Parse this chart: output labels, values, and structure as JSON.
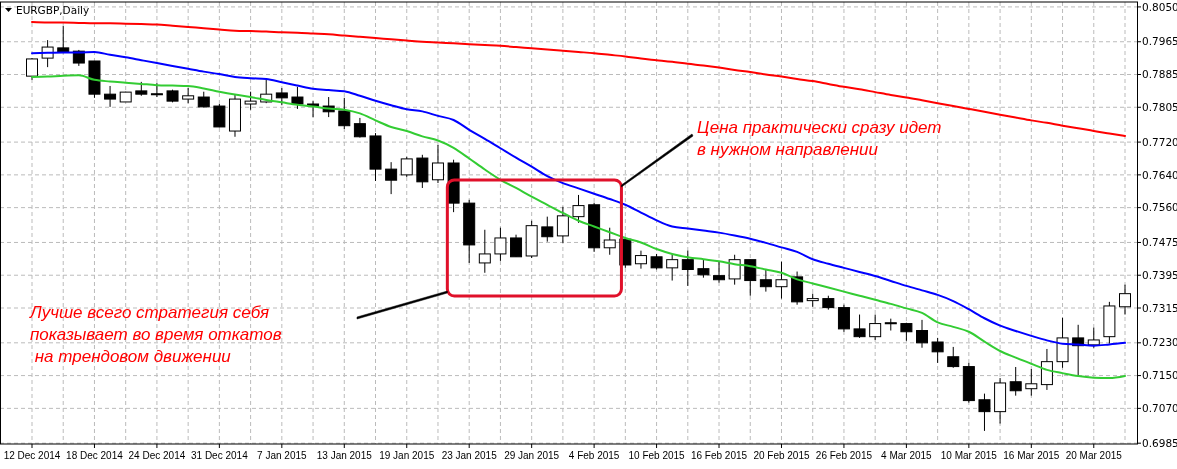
{
  "chart_data": {
    "type": "candlestick",
    "title": "EURGBP,Daily",
    "categories": [
      "12 Dec 2014",
      null,
      null,
      null,
      "18 Dec 2014",
      null,
      null,
      null,
      "24 Dec 2014",
      null,
      null,
      null,
      "31 Dec 2014",
      null,
      null,
      null,
      "7 Jan 2015",
      null,
      null,
      null,
      "13 Jan 2015",
      null,
      null,
      null,
      "19 Jan 2015",
      null,
      null,
      null,
      "23 Jan 2015",
      null,
      null,
      null,
      "29 Jan 2015",
      null,
      null,
      null,
      "4 Feb 2015",
      null,
      null,
      null,
      "10 Feb 2015",
      null,
      null,
      null,
      "16 Feb 2015",
      null,
      null,
      null,
      "20 Feb 2015",
      null,
      null,
      null,
      "26 Feb 2015",
      null,
      null,
      null,
      "4 Mar 2015",
      null,
      null,
      null,
      "10 Mar 2015",
      null,
      null,
      null,
      "16 Mar 2015",
      null,
      null,
      null,
      "20 Mar 2015",
      null,
      null
    ],
    "ohlc": [
      [
        0.7881,
        0.7925,
        0.7872,
        0.7923
      ],
      [
        0.7925,
        0.7969,
        0.7903,
        0.7952
      ],
      [
        0.795,
        0.8003,
        0.7937,
        0.794
      ],
      [
        0.7942,
        0.7945,
        0.7906,
        0.7913
      ],
      [
        0.7918,
        0.7918,
        0.7828,
        0.7837
      ],
      [
        0.7837,
        0.7857,
        0.7806,
        0.7825
      ],
      [
        0.7818,
        0.7843,
        0.7818,
        0.7842
      ],
      [
        0.7845,
        0.7867,
        0.7833,
        0.7837
      ],
      [
        0.7838,
        0.7864,
        0.783,
        0.7836
      ],
      [
        0.7845,
        0.7848,
        0.7817,
        0.782
      ],
      [
        0.7825,
        0.7852,
        0.7815,
        0.7833
      ],
      [
        0.783,
        0.7843,
        0.7805,
        0.7806
      ],
      [
        0.7808,
        0.7813,
        0.7756,
        0.7757
      ],
      [
        0.7747,
        0.7835,
        0.7733,
        0.7825
      ],
      [
        0.7813,
        0.7843,
        0.7799,
        0.782
      ],
      [
        0.7818,
        0.7872,
        0.7815,
        0.7837
      ],
      [
        0.784,
        0.7852,
        0.781,
        0.7828
      ],
      [
        0.783,
        0.7855,
        0.7801,
        0.7813
      ],
      [
        0.7813,
        0.782,
        0.7781,
        0.7808
      ],
      [
        0.7808,
        0.783,
        0.7781,
        0.7794
      ],
      [
        0.7796,
        0.7828,
        0.7752,
        0.776
      ],
      [
        0.7765,
        0.7779,
        0.7731,
        0.7733
      ],
      [
        0.7735,
        0.7742,
        0.7625,
        0.7654
      ],
      [
        0.7654,
        0.7671,
        0.7593,
        0.7627
      ],
      [
        0.764,
        0.7684,
        0.7635,
        0.7679
      ],
      [
        0.7681,
        0.7689,
        0.7608,
        0.7623
      ],
      [
        0.7628,
        0.7713,
        0.762,
        0.7669
      ],
      [
        0.7669,
        0.7677,
        0.7549,
        0.7571
      ],
      [
        0.7571,
        0.7579,
        0.7425,
        0.7469
      ],
      [
        0.7425,
        0.7506,
        0.7401,
        0.7447
      ],
      [
        0.7447,
        0.7511,
        0.743,
        0.7486
      ],
      [
        0.7486,
        0.7494,
        0.744,
        0.744
      ],
      [
        0.7442,
        0.7528,
        0.7437,
        0.7516
      ],
      [
        0.7513,
        0.7538,
        0.7477,
        0.7489
      ],
      [
        0.7491,
        0.7562,
        0.7474,
        0.754
      ],
      [
        0.7538,
        0.7591,
        0.7523,
        0.7565
      ],
      [
        0.7567,
        0.7572,
        0.7452,
        0.7462
      ],
      [
        0.7462,
        0.7511,
        0.7445,
        0.7481
      ],
      [
        0.7483,
        0.7486,
        0.7413,
        0.742
      ],
      [
        0.7423,
        0.7455,
        0.7411,
        0.7443
      ],
      [
        0.744,
        0.7447,
        0.7409,
        0.7413
      ],
      [
        0.7413,
        0.7445,
        0.7382,
        0.7433
      ],
      [
        0.7433,
        0.7455,
        0.7369,
        0.7409
      ],
      [
        0.7411,
        0.7433,
        0.7389,
        0.7396
      ],
      [
        0.7394,
        0.7428,
        0.7377,
        0.7384
      ],
      [
        0.7386,
        0.7445,
        0.7372,
        0.7433
      ],
      [
        0.7433,
        0.7433,
        0.7345,
        0.7382
      ],
      [
        0.7384,
        0.7408,
        0.7355,
        0.7367
      ],
      [
        0.7367,
        0.7428,
        0.7338,
        0.7384
      ],
      [
        0.7391,
        0.7404,
        0.7323,
        0.733
      ],
      [
        0.7333,
        0.735,
        0.7318,
        0.7338
      ],
      [
        0.7338,
        0.7345,
        0.7311,
        0.7316
      ],
      [
        0.7316,
        0.7323,
        0.7257,
        0.7264
      ],
      [
        0.7264,
        0.7299,
        0.7242,
        0.7245
      ],
      [
        0.7245,
        0.7299,
        0.7237,
        0.7277
      ],
      [
        0.7279,
        0.7289,
        0.726,
        0.7277
      ],
      [
        0.7277,
        0.7279,
        0.7235,
        0.7257
      ],
      [
        0.726,
        0.7286,
        0.7218,
        0.723
      ],
      [
        0.7232,
        0.7242,
        0.7181,
        0.7208
      ],
      [
        0.7196,
        0.722,
        0.7169,
        0.7172
      ],
      [
        0.7172,
        0.7181,
        0.7084,
        0.7089
      ],
      [
        0.7091,
        0.7106,
        0.7015,
        0.7062
      ],
      [
        0.7062,
        0.7144,
        0.7033,
        0.7132
      ],
      [
        0.7135,
        0.7171,
        0.7101,
        0.7113
      ],
      [
        0.7118,
        0.7166,
        0.7101,
        0.713
      ],
      [
        0.7128,
        0.7215,
        0.7115,
        0.7184
      ],
      [
        0.7184,
        0.7291,
        0.7169,
        0.7242
      ],
      [
        0.7242,
        0.7274,
        0.7149,
        0.7223
      ],
      [
        0.7225,
        0.7267,
        0.7218,
        0.7237
      ],
      [
        0.7245,
        0.733,
        0.7228,
        0.732
      ],
      [
        0.7318,
        0.7372,
        0.7299,
        0.735
      ]
    ],
    "series": [
      {
        "type": "line",
        "color": "#ff0000",
        "values": [
          0.8013,
          0.8012,
          0.8012,
          0.8011,
          0.801,
          0.801,
          0.8009,
          0.8008,
          0.8007,
          0.8004,
          0.8001,
          0.7998,
          0.7995,
          0.7992,
          0.7991,
          0.799,
          0.7988,
          0.7987,
          0.7985,
          0.7983,
          0.798,
          0.7977,
          0.7974,
          0.7971,
          0.7968,
          0.7965,
          0.7963,
          0.7961,
          0.7959,
          0.7957,
          0.7955,
          0.7952,
          0.7949,
          0.7946,
          0.7943,
          0.794,
          0.7937,
          0.7933,
          0.7929,
          0.7924,
          0.792,
          0.7916,
          0.7911,
          0.7907,
          0.7902,
          0.7896,
          0.7891,
          0.7885,
          0.788,
          0.7874,
          0.7869,
          0.7862,
          0.7855,
          0.7849,
          0.7842,
          0.7835,
          0.7829,
          0.7822,
          0.7815,
          0.7808,
          0.7801,
          0.7794,
          0.7787,
          0.778,
          0.7773,
          0.7767,
          0.776,
          0.7754,
          0.7747,
          0.7741,
          0.7735
        ]
      },
      {
        "type": "line",
        "color": "#0000ff",
        "values": [
          0.7937,
          0.7938,
          0.7939,
          0.7939,
          0.794,
          0.7933,
          0.7927,
          0.792,
          0.7913,
          0.7906,
          0.7899,
          0.7892,
          0.7886,
          0.7879,
          0.7876,
          0.7874,
          0.7866,
          0.7858,
          0.785,
          0.7847,
          0.7844,
          0.7833,
          0.7821,
          0.781,
          0.78,
          0.7795,
          0.7784,
          0.7774,
          0.775,
          0.7728,
          0.7705,
          0.7682,
          0.766,
          0.7637,
          0.762,
          0.7607,
          0.7594,
          0.7581,
          0.7567,
          0.7548,
          0.7529,
          0.7514,
          0.7509,
          0.7504,
          0.7499,
          0.7492,
          0.7484,
          0.7474,
          0.7463,
          0.7452,
          0.7434,
          0.7423,
          0.7413,
          0.7403,
          0.7393,
          0.7381,
          0.7369,
          0.7358,
          0.7347,
          0.7332,
          0.7312,
          0.729,
          0.7272,
          0.7259,
          0.7247,
          0.7236,
          0.7228,
          0.7226,
          0.7223,
          0.7226,
          0.723
        ]
      },
      {
        "type": "line",
        "color": "#33cc33",
        "values": [
          0.7879,
          0.788,
          0.7882,
          0.7883,
          0.7872,
          0.7868,
          0.7865,
          0.7862,
          0.7859,
          0.7858,
          0.7857,
          0.7851,
          0.7843,
          0.7836,
          0.783,
          0.7823,
          0.7817,
          0.7811,
          0.7807,
          0.7802,
          0.7799,
          0.779,
          0.7773,
          0.7757,
          0.7747,
          0.7734,
          0.7724,
          0.7706,
          0.768,
          0.7653,
          0.7628,
          0.7608,
          0.7587,
          0.7567,
          0.7547,
          0.7528,
          0.7514,
          0.75,
          0.7486,
          0.7475,
          0.7459,
          0.7447,
          0.7439,
          0.7434,
          0.7429,
          0.7422,
          0.7417,
          0.7409,
          0.7401,
          0.7385,
          0.7375,
          0.7365,
          0.7355,
          0.7345,
          0.7335,
          0.7325,
          0.7314,
          0.7303,
          0.728,
          0.7269,
          0.7257,
          0.7233,
          0.721,
          0.7194,
          0.7179,
          0.7164,
          0.7156,
          0.7149,
          0.7145,
          0.7144,
          0.7149
        ]
      }
    ],
    "ylim": [
      0.6983,
      0.8062
    ],
    "yticks": [
      {
        "value": 0.805,
        "label": "0.8050"
      },
      {
        "value": 0.7965,
        "label": "0.7965"
      },
      {
        "value": 0.7885,
        "label": "0.7885"
      },
      {
        "value": 0.7805,
        "label": "0.7805"
      },
      {
        "value": 0.772,
        "label": "0.7720"
      },
      {
        "value": 0.764,
        "label": "0.7640"
      },
      {
        "value": 0.756,
        "label": "0.7560"
      },
      {
        "value": 0.7475,
        "label": "0.7475"
      },
      {
        "value": 0.7395,
        "label": "0.7395"
      },
      {
        "value": 0.7315,
        "label": "0.7315"
      },
      {
        "value": 0.723,
        "label": "0.7230"
      },
      {
        "value": 0.715,
        "label": "0.7150"
      },
      {
        "value": 0.707,
        "label": "0.7070"
      },
      {
        "value": 0.6985,
        "label": "0.6985"
      }
    ],
    "grid": true,
    "annotations": [
      "Цена практически сразу идет\nв нужном направлении",
      "Лучше всего стратегия себя\nпоказывает во время откатов\n на трендовом движении"
    ]
  }
}
